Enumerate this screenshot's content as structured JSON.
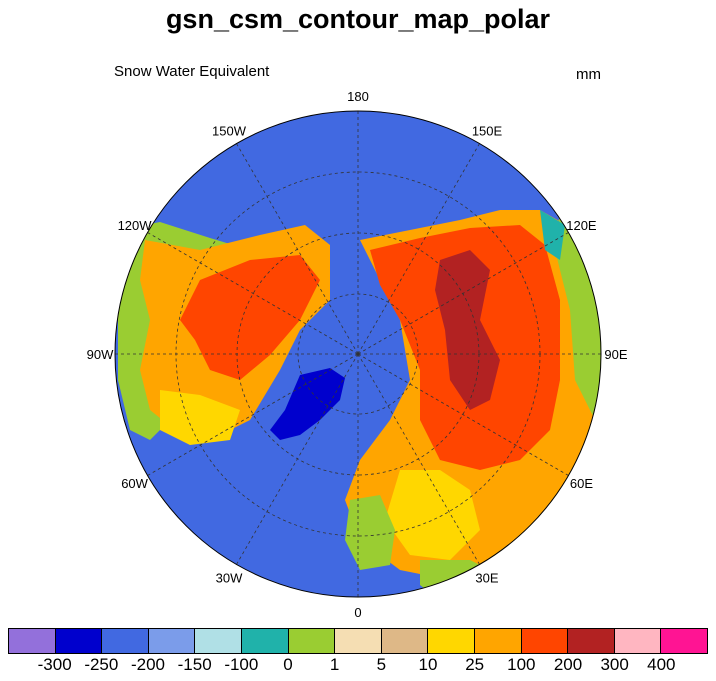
{
  "title": "gsn_csm_contour_map_polar",
  "left_string": "Snow Water Equivalent",
  "right_string": "mm",
  "longitude_labels": [
    {
      "text": "180",
      "lon": 180
    },
    {
      "text": "150E",
      "lon": 150
    },
    {
      "text": "120E",
      "lon": 120
    },
    {
      "text": "90E",
      "lon": 90
    },
    {
      "text": "60E",
      "lon": 60
    },
    {
      "text": "30E",
      "lon": 30
    },
    {
      "text": "0",
      "lon": 0
    },
    {
      "text": "30W",
      "lon": -30
    },
    {
      "text": "60W",
      "lon": -60
    },
    {
      "text": "90W",
      "lon": -90
    },
    {
      "text": "120W",
      "lon": -120
    },
    {
      "text": "150W",
      "lon": -150
    }
  ],
  "projection": "north polar stereographic",
  "colors": {
    "ocean": "#4169e1",
    "levels": [
      "#9370db",
      "#0000cd",
      "#4169e1",
      "#7b9cea",
      "#b0e0e6",
      "#20b2aa",
      "#9acd32",
      "#f5deb3",
      "#deb887",
      "#ffd700",
      "#ffa500",
      "#ff4500",
      "#b22222",
      "#ffb6c1",
      "#ff1493"
    ]
  },
  "colorbar_labels": [
    "-300",
    "-250",
    "-200",
    "-150",
    "-100",
    "0",
    "1",
    "5",
    "10",
    "25",
    "100",
    "200",
    "300",
    "400"
  ]
}
